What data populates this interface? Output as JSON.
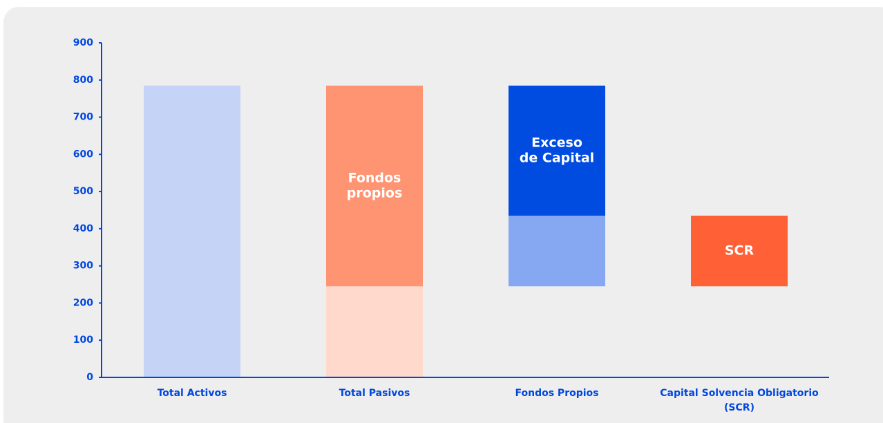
{
  "chart_data": {
    "type": "floating-stacked-bar",
    "categories": [
      [
        "Total Activos"
      ],
      [
        "Total Pasivos"
      ],
      [
        "Fondos Propios"
      ],
      [
        "Capital Solvencia Obligatorio",
        "(SCR)"
      ]
    ],
    "series": [
      {
        "color": "none",
        "values": [
          0,
          0,
          245,
          245
        ]
      },
      {
        "color": "#c5d3f7",
        "values": [
          785,
          null,
          null,
          null
        ]
      },
      {
        "color": "#ffd9cc",
        "values": [
          null,
          245,
          null,
          null
        ]
      },
      {
        "color": "#ff9473",
        "label": [
          "Fondos",
          "propios"
        ],
        "values": [
          null,
          540,
          null,
          null
        ]
      },
      {
        "color": "#86a8f2",
        "values": [
          null,
          null,
          190,
          null
        ]
      },
      {
        "color": "#004be0",
        "label": [
          "Exceso",
          "de Capital"
        ],
        "values": [
          null,
          null,
          350,
          null
        ]
      },
      {
        "color": "#ff6035",
        "label": [
          "SCR"
        ],
        "values": [
          null,
          null,
          null,
          190
        ]
      }
    ],
    "ylim": [
      0,
      900
    ],
    "yticks": [
      0,
      100,
      200,
      300,
      400,
      500,
      600,
      700,
      800,
      900
    ],
    "axis_color": "#0047e0"
  }
}
